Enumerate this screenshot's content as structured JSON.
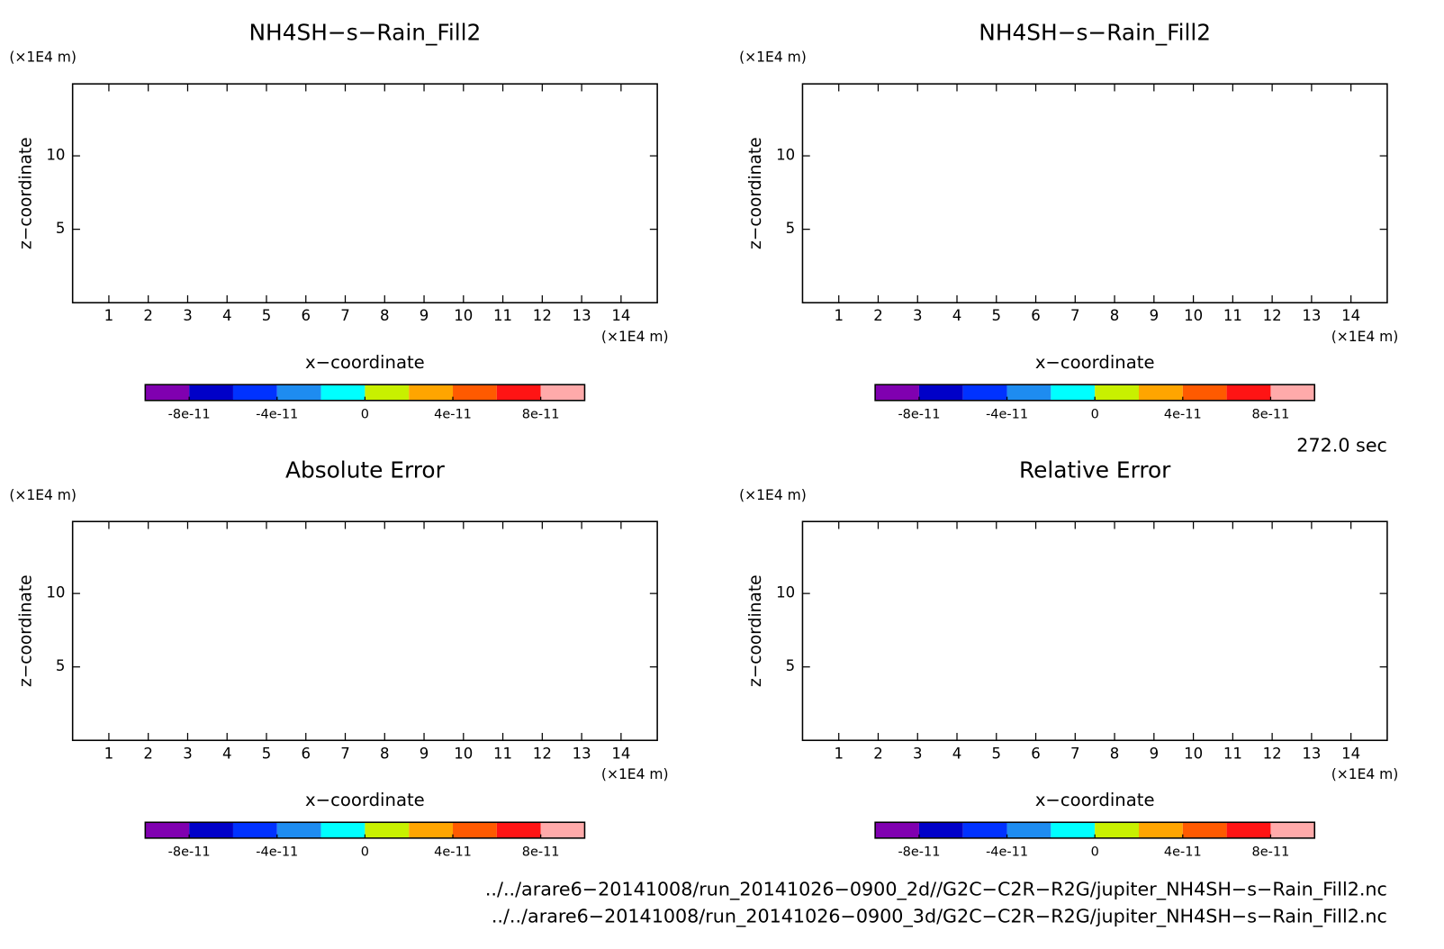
{
  "chart_data": [
    {
      "type": "contour",
      "title": "NH4SH−s−Rain_Fill2",
      "xlabel": "x−coordinate",
      "ylabel": "z−coordinate",
      "x_unit": "(×1E4 m)",
      "y_unit": "(×1E4 m)",
      "xlim": [
        0.08,
        14.92
      ],
      "ylim": [
        0,
        14.9
      ],
      "xticks": [
        1,
        2,
        3,
        4,
        5,
        6,
        7,
        8,
        9,
        10,
        11,
        12,
        13,
        14
      ],
      "yticks": [
        5,
        10
      ],
      "colorbar": {
        "colors": [
          "#8000b0",
          "#0000c8",
          "#0032ff",
          "#1e8cf0",
          "#00ffff",
          "#c8f000",
          "#ffa500",
          "#ff5a00",
          "#ff1414",
          "#ffaaaa"
        ],
        "lim": [
          -1e-10,
          1e-10
        ],
        "ticks": [
          -8e-11,
          -4e-11,
          0,
          4e-11,
          8e-11
        ]
      }
    },
    {
      "type": "contour",
      "title": "NH4SH−s−Rain_Fill2",
      "xlabel": "x−coordinate",
      "ylabel": "z−coordinate",
      "x_unit": "(×1E4 m)",
      "y_unit": "(×1E4 m)",
      "xlim": [
        0.08,
        14.92
      ],
      "ylim": [
        0,
        14.9
      ],
      "xticks": [
        1,
        2,
        3,
        4,
        5,
        6,
        7,
        8,
        9,
        10,
        11,
        12,
        13,
        14
      ],
      "yticks": [
        5,
        10
      ],
      "colorbar": {
        "colors": [
          "#8000b0",
          "#0000c8",
          "#0032ff",
          "#1e8cf0",
          "#00ffff",
          "#c8f000",
          "#ffa500",
          "#ff5a00",
          "#ff1414",
          "#ffaaaa"
        ],
        "lim": [
          -1e-10,
          1e-10
        ],
        "ticks": [
          -8e-11,
          -4e-11,
          0,
          4e-11,
          8e-11
        ]
      }
    },
    {
      "type": "contour",
      "title": "Absolute Error",
      "xlabel": "x−coordinate",
      "ylabel": "z−coordinate",
      "x_unit": "(×1E4 m)",
      "y_unit": "(×1E4 m)",
      "xlim": [
        0.08,
        14.92
      ],
      "ylim": [
        0,
        14.9
      ],
      "xticks": [
        1,
        2,
        3,
        4,
        5,
        6,
        7,
        8,
        9,
        10,
        11,
        12,
        13,
        14
      ],
      "yticks": [
        5,
        10
      ],
      "colorbar": {
        "colors": [
          "#8000b0",
          "#0000c8",
          "#0032ff",
          "#1e8cf0",
          "#00ffff",
          "#c8f000",
          "#ffa500",
          "#ff5a00",
          "#ff1414",
          "#ffaaaa"
        ],
        "lim": [
          -1e-10,
          1e-10
        ],
        "ticks": [
          -8e-11,
          -4e-11,
          0,
          4e-11,
          8e-11
        ]
      }
    },
    {
      "type": "contour",
      "title": "Relative Error",
      "xlabel": "x−coordinate",
      "ylabel": "z−coordinate",
      "x_unit": "(×1E4 m)",
      "y_unit": "(×1E4 m)",
      "xlim": [
        0.08,
        14.92
      ],
      "ylim": [
        0,
        14.9
      ],
      "xticks": [
        1,
        2,
        3,
        4,
        5,
        6,
        7,
        8,
        9,
        10,
        11,
        12,
        13,
        14
      ],
      "yticks": [
        5,
        10
      ],
      "colorbar": {
        "colors": [
          "#8000b0",
          "#0000c8",
          "#0032ff",
          "#1e8cf0",
          "#00ffff",
          "#c8f000",
          "#ffa500",
          "#ff5a00",
          "#ff1414",
          "#ffaaaa"
        ],
        "lim": [
          -1e-10,
          1e-10
        ],
        "ticks": [
          -8e-11,
          -4e-11,
          0,
          4e-11,
          8e-11
        ]
      }
    }
  ],
  "time_label": "272.0 sec",
  "files": [
    "../../arare6−20141008/run_20141026−0900_2d//G2C−C2R−R2G/jupiter_NH4SH−s−Rain_Fill2.nc",
    "../../arare6−20141008/run_20141026−0900_3d/G2C−C2R−R2G/jupiter_NH4SH−s−Rain_Fill2.nc"
  ]
}
